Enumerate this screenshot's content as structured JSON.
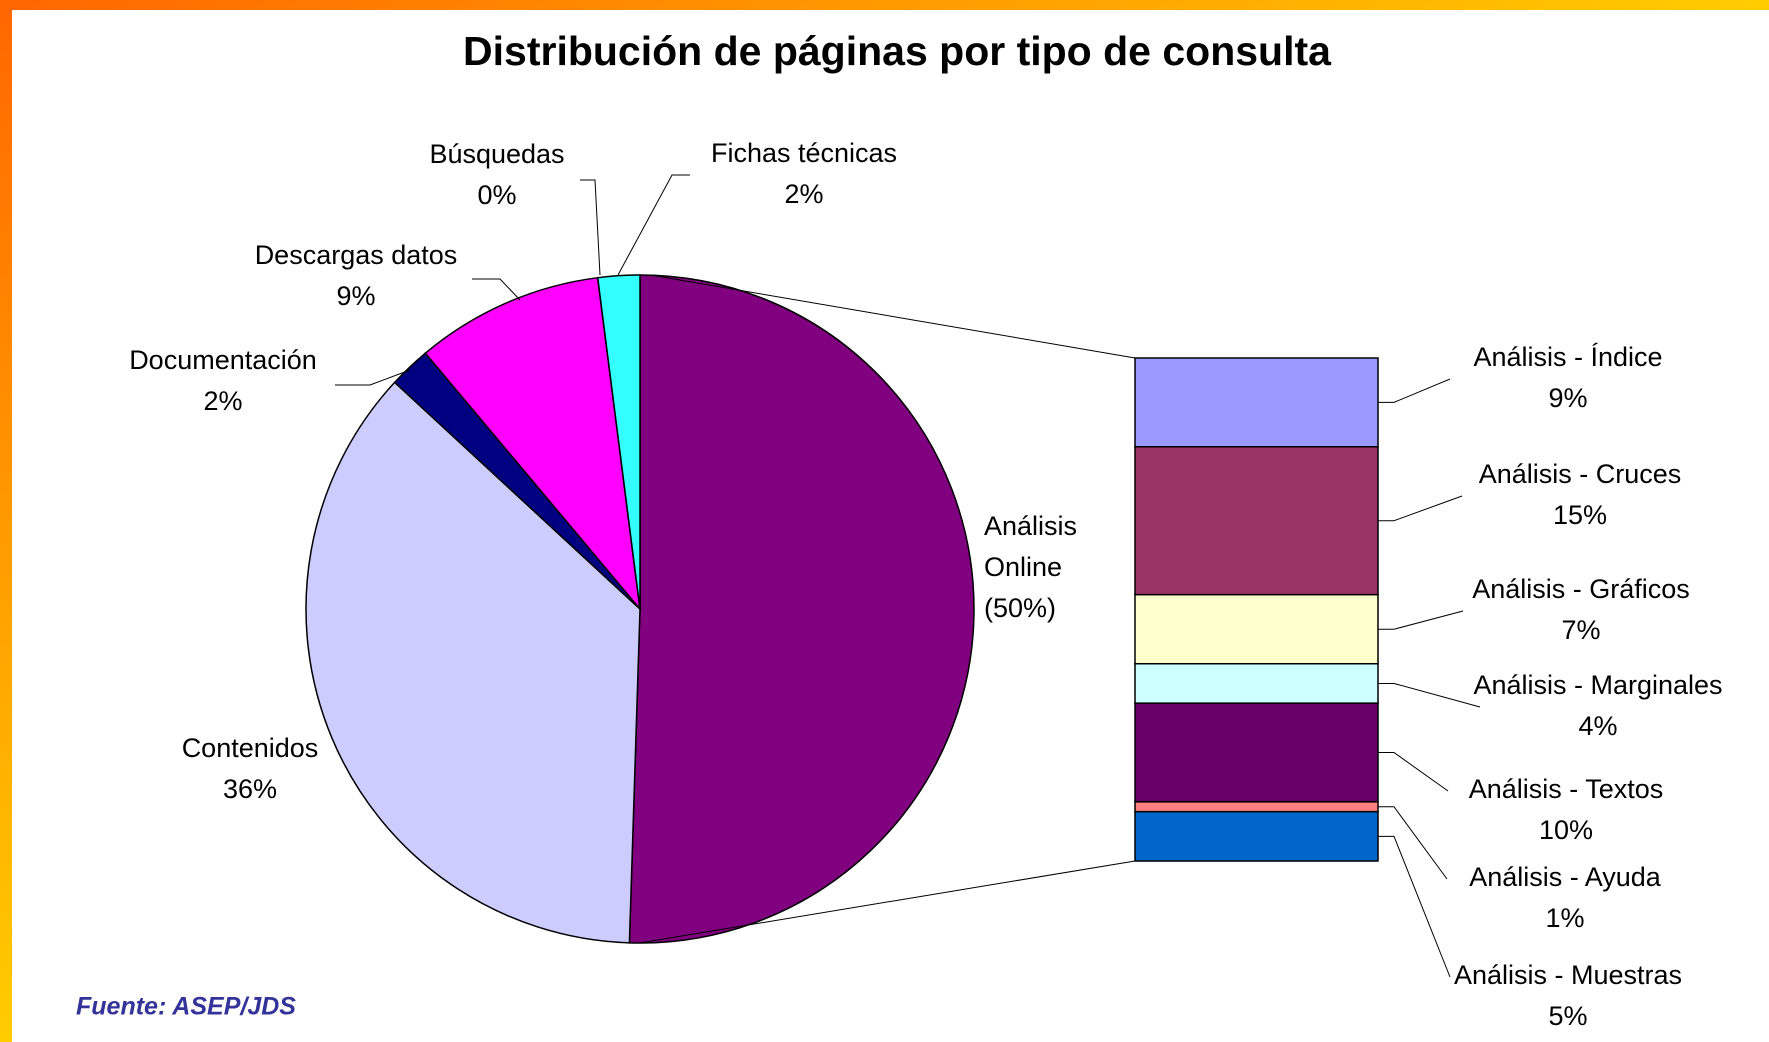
{
  "chart_data": {
    "type": "pie",
    "title": "Distribución de páginas por tipo de consulta",
    "categories": [
      "Análisis Online",
      "Contenidos",
      "Documentación",
      "Descargas datos",
      "Búsquedas",
      "Fichas técnicas"
    ],
    "values": [
      50,
      36,
      2,
      9,
      0,
      2
    ],
    "value_labels": [
      "(50%)",
      "36%",
      "2%",
      "9%",
      "0%",
      "2%"
    ],
    "colors": [
      "#800080",
      "#ccccff",
      "#000080",
      "#ff00ff",
      "#ffff00",
      "#33ffff"
    ],
    "breakdown": {
      "categories": [
        "Análisis - Índice",
        "Análisis - Cruces",
        "Análisis - Gráficos",
        "Análisis - Marginales",
        "Análisis - Textos",
        "Análisis - Ayuda",
        "Análisis - Muestras"
      ],
      "values": [
        9,
        15,
        7,
        4,
        10,
        1,
        5
      ],
      "value_labels": [
        "9%",
        "15%",
        "7%",
        "4%",
        "10%",
        "1%",
        "5%"
      ],
      "colors": [
        "#9999ff",
        "#993366",
        "#ffffcc",
        "#ccffff",
        "#660066",
        "#ff8080",
        "#0066cc"
      ]
    },
    "source": "Fuente: ASEP/JDS"
  }
}
